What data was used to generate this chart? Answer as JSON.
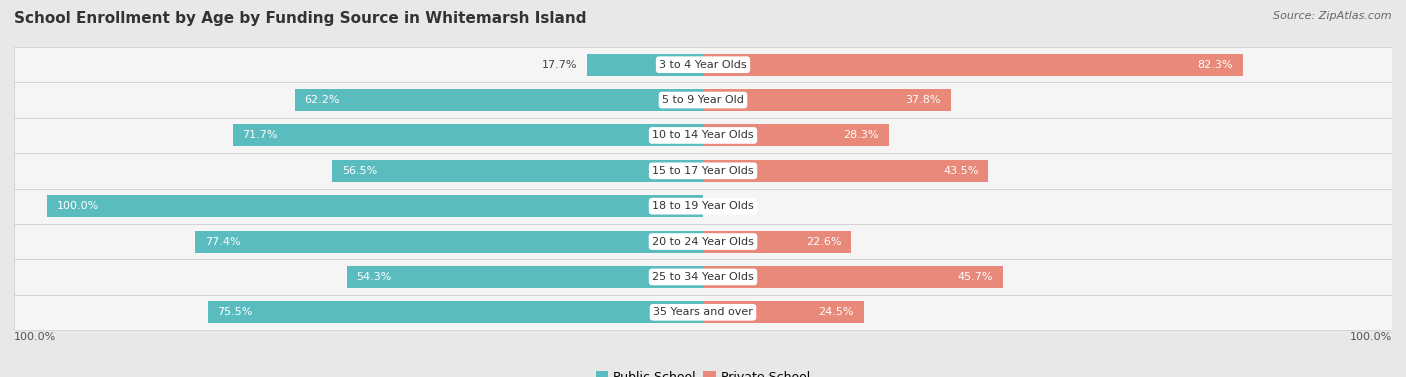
{
  "title": "School Enrollment by Age by Funding Source in Whitemarsh Island",
  "source": "Source: ZipAtlas.com",
  "categories": [
    "3 to 4 Year Olds",
    "5 to 9 Year Old",
    "10 to 14 Year Olds",
    "15 to 17 Year Olds",
    "18 to 19 Year Olds",
    "20 to 24 Year Olds",
    "25 to 34 Year Olds",
    "35 Years and over"
  ],
  "public_values": [
    17.7,
    62.2,
    71.7,
    56.5,
    100.0,
    77.4,
    54.3,
    75.5
  ],
  "private_values": [
    82.3,
    37.8,
    28.3,
    43.5,
    0.0,
    22.6,
    45.7,
    24.5
  ],
  "public_color": "#5bbcbf",
  "private_color": "#e8897a",
  "background_color": "#e8e8e8",
  "row_bg_color": "#f5f5f5",
  "bar_height": 0.62,
  "title_fontsize": 11,
  "label_fontsize": 8,
  "category_fontsize": 8,
  "axis_label_fontsize": 8,
  "legend_fontsize": 9,
  "x_axis_left_label": "100.0%",
  "x_axis_right_label": "100.0%",
  "inside_label_threshold": 20
}
